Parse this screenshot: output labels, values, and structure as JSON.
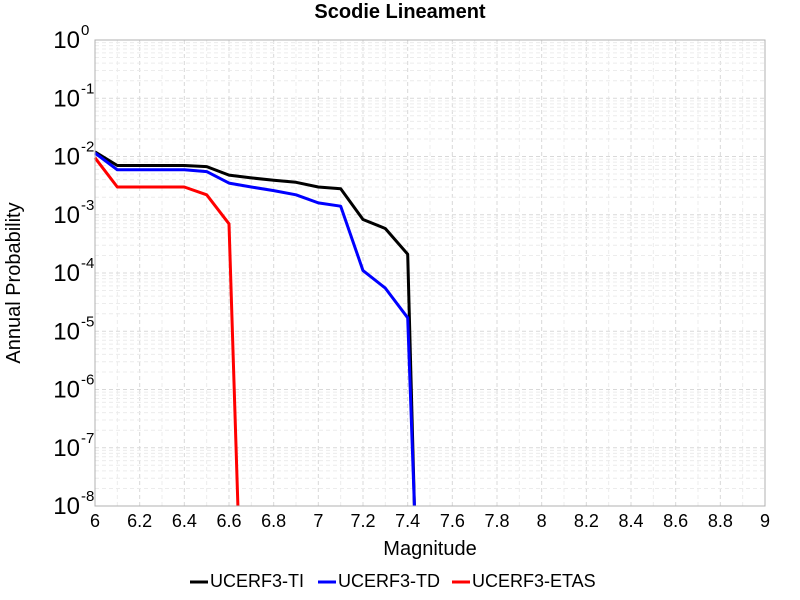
{
  "chart_data": {
    "type": "line",
    "title": "Scodie Lineament",
    "xlabel": "Magnitude",
    "ylabel": "Annual Probability",
    "xlim": [
      6,
      9
    ],
    "ylim": [
      1e-08,
      1
    ],
    "yscale": "log",
    "grid": true,
    "legend_position": "bottom",
    "x_ticks": [
      "6",
      "6.2",
      "6.4",
      "6.6",
      "6.8",
      "7",
      "7.2",
      "7.4",
      "7.6",
      "7.8",
      "8",
      "8.2",
      "8.4",
      "8.6",
      "8.8",
      "9"
    ],
    "y_ticks": [
      {
        "base": "10",
        "exp": "-8"
      },
      {
        "base": "10",
        "exp": "-7"
      },
      {
        "base": "10",
        "exp": "-6"
      },
      {
        "base": "10",
        "exp": "-5"
      },
      {
        "base": "10",
        "exp": "-4"
      },
      {
        "base": "10",
        "exp": "-3"
      },
      {
        "base": "10",
        "exp": "-2"
      },
      {
        "base": "10",
        "exp": "-1"
      },
      {
        "base": "10",
        "exp": "0"
      }
    ],
    "series": [
      {
        "name": "UCERF3-TI",
        "color": "#000000",
        "x": [
          6.0,
          6.1,
          6.2,
          6.3,
          6.4,
          6.5,
          6.6,
          6.7,
          6.8,
          6.9,
          7.0,
          7.1,
          7.2,
          7.3,
          7.4,
          7.43
        ],
        "y": [
          0.012,
          0.007,
          0.007,
          0.007,
          0.007,
          0.0067,
          0.0048,
          0.0043,
          0.0039,
          0.0036,
          0.003,
          0.0028,
          0.00083,
          0.00058,
          0.00021,
          1e-08
        ]
      },
      {
        "name": "UCERF3-TD",
        "color": "#0000ff",
        "x": [
          6.0,
          6.1,
          6.2,
          6.3,
          6.4,
          6.5,
          6.6,
          6.7,
          6.8,
          6.9,
          7.0,
          7.1,
          7.2,
          7.3,
          7.4,
          7.43
        ],
        "y": [
          0.0115,
          0.0059,
          0.0059,
          0.0059,
          0.0059,
          0.0055,
          0.0035,
          0.003,
          0.0026,
          0.0022,
          0.0016,
          0.0014,
          0.00011,
          5.5e-05,
          1.7e-05,
          1e-08
        ]
      },
      {
        "name": "UCERF3-ETAS",
        "color": "#ff0000",
        "x": [
          6.0,
          6.1,
          6.2,
          6.3,
          6.4,
          6.5,
          6.6,
          6.64
        ],
        "y": [
          0.0095,
          0.003,
          0.003,
          0.003,
          0.003,
          0.0022,
          0.0007,
          1e-08
        ]
      }
    ]
  }
}
